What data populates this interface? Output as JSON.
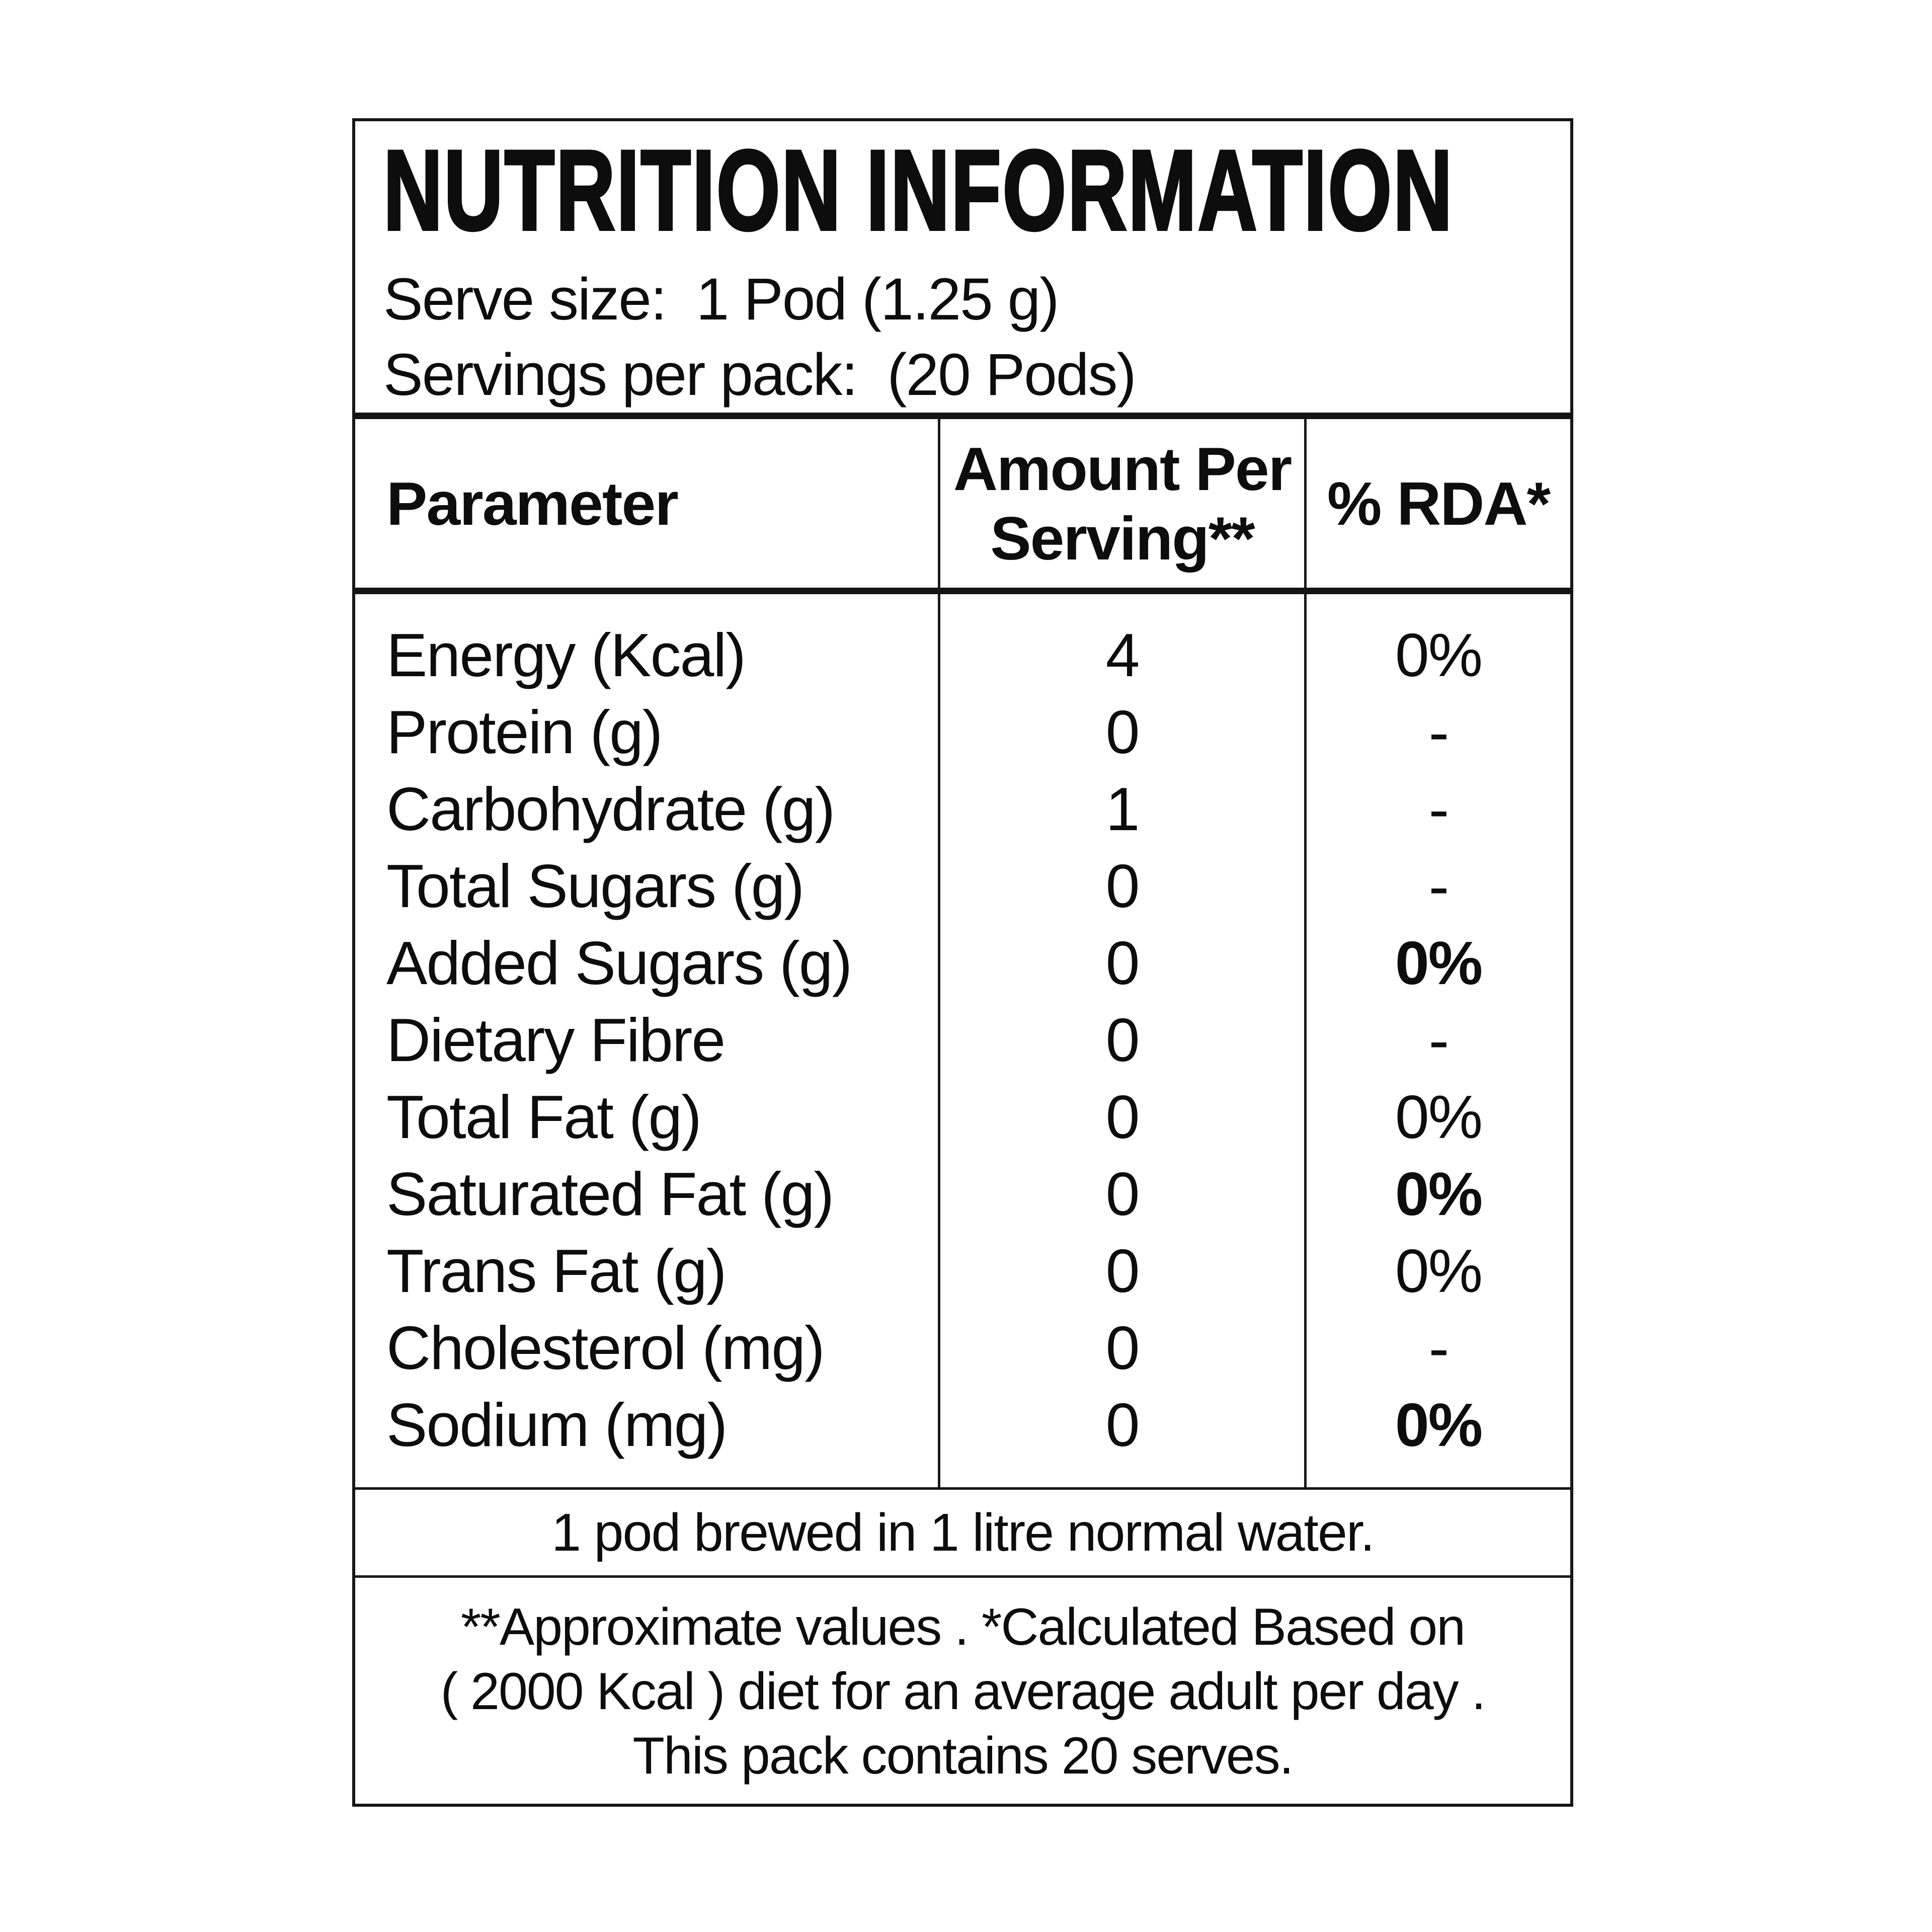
{
  "title": "NUTRITION INFORMATION",
  "serving_info": {
    "serve_size_label": "Serve size:",
    "serve_size_value": "1 Pod (1.25 g)",
    "servings_label": "Servings per pack:",
    "servings_value": "(20 Pods)"
  },
  "table": {
    "header": {
      "parameter": "Parameter",
      "amount_line1": "Amount Per",
      "amount_line2": "Serving**",
      "rda": "% RDA*"
    },
    "rows": [
      {
        "label": "Energy (Kcal)",
        "amount": "4",
        "rda": "0%"
      },
      {
        "label": "Protein (g)",
        "amount": "0",
        "rda": "-"
      },
      {
        "label": "Carbohydrate (g)",
        "amount": "1",
        "rda": "-"
      },
      {
        "label": "Total Sugars (g)",
        "amount": "0",
        "rda": "-"
      },
      {
        "label": "Added Sugars (g)",
        "amount": "0",
        "rda": "0%"
      },
      {
        "label": "Dietary Fibre",
        "amount": "0",
        "rda": "-"
      },
      {
        "label": "Total Fat (g)",
        "amount": "0",
        "rda": "0%"
      },
      {
        "label": "Saturated Fat (g)",
        "amount": "0",
        "rda": "0%"
      },
      {
        "label": "Trans Fat (g)",
        "amount": "0",
        "rda": "0%"
      },
      {
        "label": "Cholesterol (mg)",
        "amount": "0",
        "rda": "-"
      },
      {
        "label": "Sodium (mg)",
        "amount": "0",
        "rda": "0%"
      }
    ]
  },
  "notes": {
    "brew_note": "1 pod brewed in 1 litre normal water.",
    "footnote_line1": "**Approximate values . *Calculated Based on",
    "footnote_line2": "( 2000 Kcal ) diet for an average adult per day .",
    "footnote_line3": "This pack contains 20 serves."
  },
  "colors": {
    "text": "#0d0d0d",
    "border": "#161616",
    "background": "#ffffff"
  }
}
